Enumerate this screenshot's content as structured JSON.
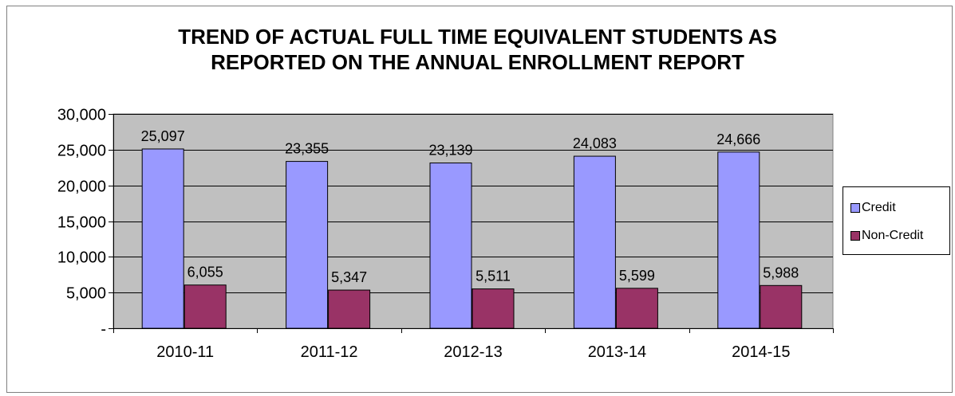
{
  "chart_data": {
    "type": "bar",
    "title_lines": [
      "TREND OF ACTUAL FULL TIME EQUIVALENT STUDENTS AS",
      "REPORTED ON THE ANNUAL ENROLLMENT REPORT"
    ],
    "categories": [
      "2010-11",
      "2011-12",
      "2012-13",
      "2013-14",
      "2014-15"
    ],
    "series": [
      {
        "name": "Credit",
        "color": "#9999ff",
        "values": [
          25097,
          23355,
          23139,
          24083,
          24666
        ],
        "labels": [
          "25,097",
          "23,355",
          "23,139",
          "24,083",
          "24,666"
        ]
      },
      {
        "name": "Non-Credit",
        "color": "#993366",
        "values": [
          6055,
          5347,
          5511,
          5599,
          5988
        ],
        "labels": [
          "6,055",
          "5,347",
          "5,511",
          "5,599",
          "5,988"
        ]
      }
    ],
    "ylim": [
      0,
      30000
    ],
    "yticks": [
      0,
      5000,
      10000,
      15000,
      20000,
      25000,
      30000
    ],
    "ytick_labels": [
      "-",
      "5,000",
      "10,000",
      "15,000",
      "20,000",
      "25,000",
      "30,000"
    ],
    "xlabel": "",
    "ylabel": "",
    "grid": true,
    "plot_background": "#c0c0c0",
    "legend_position": "right"
  }
}
